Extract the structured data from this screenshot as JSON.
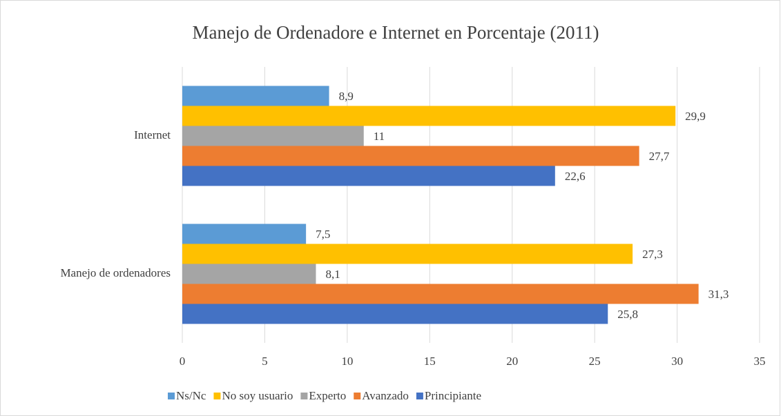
{
  "chart_data": {
    "type": "hbar",
    "title": "Manejo de Ordenadore e Internet en Porcentaje (2011)",
    "categories": [
      "Internet",
      "Manejo de ordenadores"
    ],
    "series": [
      {
        "name": "Ns/Nc",
        "color": "#5b9bd5",
        "values": [
          8.9,
          7.5
        ],
        "value_labels": [
          "8,9",
          "7,5"
        ]
      },
      {
        "name": "No soy usuario",
        "color": "#ffc000",
        "values": [
          29.9,
          27.3
        ],
        "value_labels": [
          "29,9",
          "27,3"
        ]
      },
      {
        "name": "Experto",
        "color": "#a5a5a5",
        "values": [
          11,
          8.1
        ],
        "value_labels": [
          "11",
          "8,1"
        ]
      },
      {
        "name": "Avanzado",
        "color": "#ed7d31",
        "values": [
          27.7,
          31.3
        ],
        "value_labels": [
          "27,7",
          "31,3"
        ]
      },
      {
        "name": "Principiante",
        "color": "#4472c4",
        "values": [
          22.6,
          25.8
        ],
        "value_labels": [
          "22,6",
          "25,8"
        ]
      }
    ],
    "xlim": [
      0,
      35
    ],
    "xticks": [
      0,
      5,
      10,
      15,
      20,
      25,
      30,
      35
    ],
    "grid": true,
    "legend": "bottom"
  }
}
